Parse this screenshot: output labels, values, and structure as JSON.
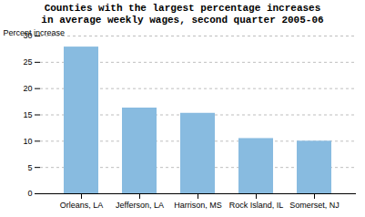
{
  "chart_data": {
    "type": "bar",
    "title": "Counties with the largest percentage increases\nin average weekly wages, second quarter 2005-06",
    "categories": [
      "Orleans, LA",
      "Jefferson, LA",
      "Harrison, MS",
      "Rock Island, IL",
      "Somerset, NJ"
    ],
    "values": [
      27.9,
      16.3,
      15.3,
      10.5,
      10.0
    ],
    "color": "#88BBE0",
    "ylabel": "Percent increase",
    "ylim": [
      0,
      30
    ],
    "yticks": [
      0,
      5,
      10,
      15,
      20,
      25,
      30
    ],
    "grid": true
  }
}
